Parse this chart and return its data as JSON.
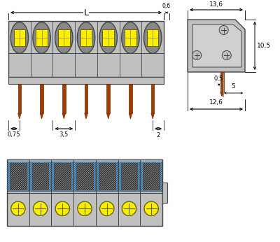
{
  "bg_color": "#ffffff",
  "gray_body": "#c0c0c0",
  "gray_dark": "#888888",
  "gray_mid": "#a0a0a0",
  "gray_light": "#d0d0d0",
  "gray_outline": "#444444",
  "yellow": "#ffee00",
  "orange_pin": "#a04000",
  "orange_light": "#c05010",
  "black": "#000000",
  "n_poles": 7,
  "dim_L_label": "L",
  "dim_06": "0,6",
  "dim_136": "13,6",
  "dim_105": "10,5",
  "dim_075": "0,75",
  "dim_35": "3,5",
  "dim_2": "2",
  "dim_05": "0,5",
  "dim_5": "5",
  "dim_126": "12,6"
}
